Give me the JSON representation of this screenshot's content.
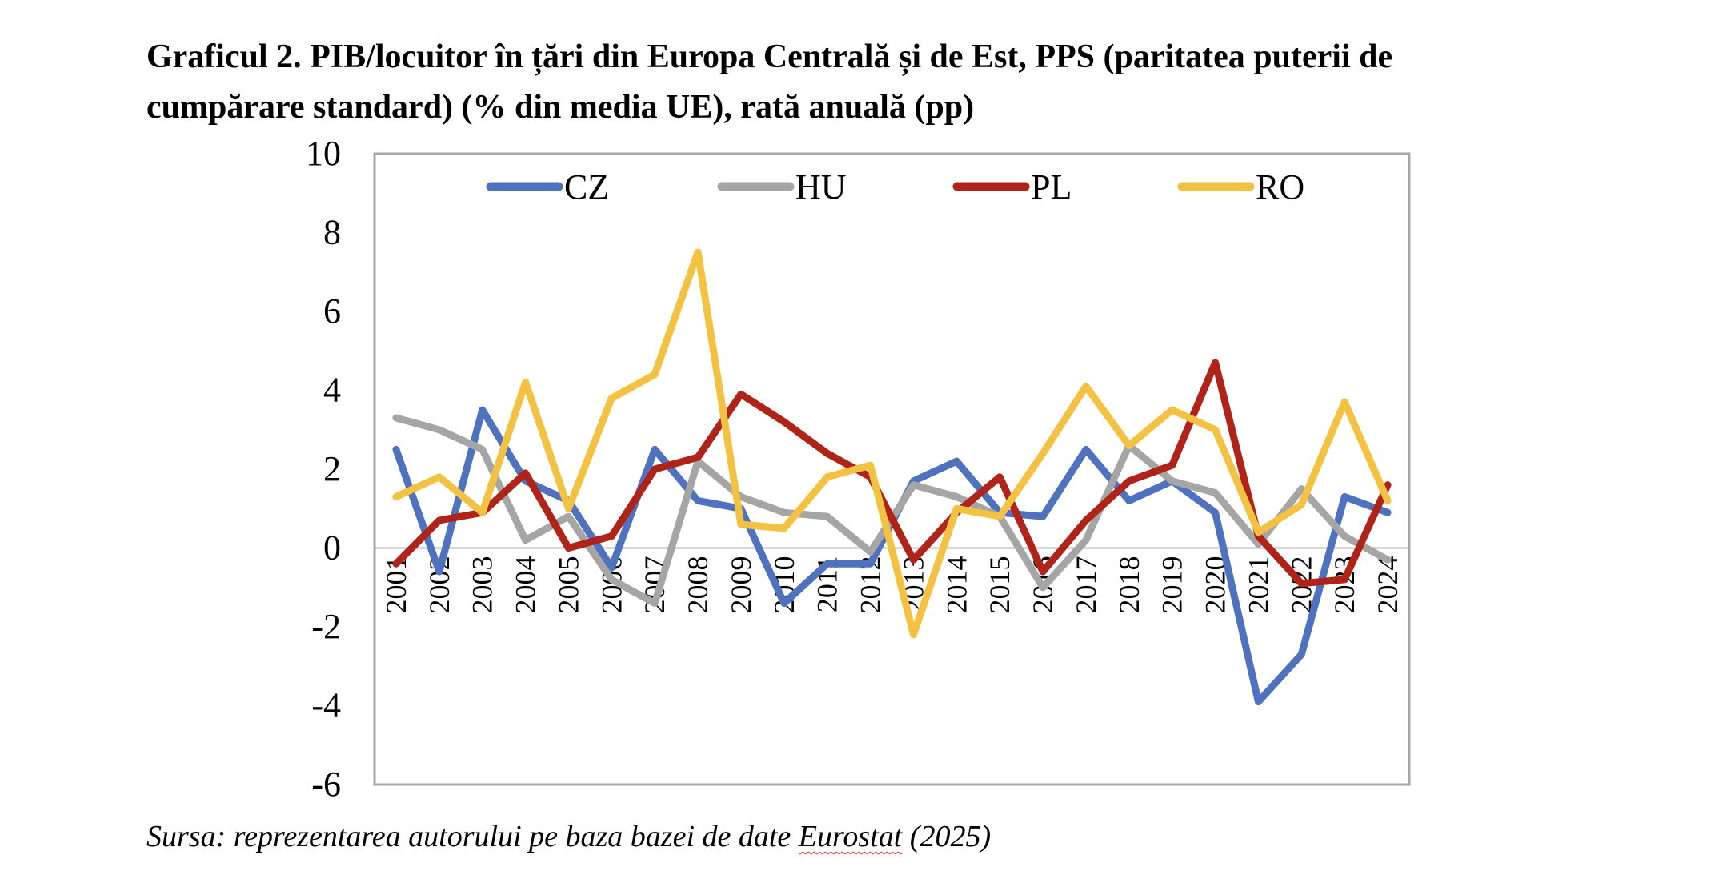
{
  "title": {
    "line1": "Graficul 2. PIB/locuitor în țări din Europa Centrală și de Est, PPS (paritatea puterii de",
    "line2": "cumpărare standard) (% din media UE), rată anuală (pp)"
  },
  "source": {
    "prefix": "Sursa: reprezentarea autorului pe baza bazei de date ",
    "highlighted": "Eurostat",
    "suffix": " (2025)"
  },
  "chart_data": {
    "type": "line",
    "title": "Graficul 2. PIB/locuitor în țări din Europa Centrală și de Est, PPS (paritatea puterii de cumpărare standard) (% din media UE), rată anuală (pp)",
    "xlabel": "",
    "ylabel": "",
    "ylim": [
      -6,
      10
    ],
    "yticks": [
      10,
      8,
      6,
      4,
      2,
      0,
      -2,
      -4,
      -6
    ],
    "grid": false,
    "zero_line": true,
    "legend_position": "top",
    "categories": [
      "2001",
      "2002",
      "2003",
      "2004",
      "2005",
      "2006",
      "2007",
      "2008",
      "2009",
      "2010",
      "2011",
      "2012",
      "2013",
      "2014",
      "2015",
      "2016",
      "2017",
      "2018",
      "2019",
      "2020",
      "2021",
      "2022",
      "2023",
      "2024"
    ],
    "series": [
      {
        "name": "CZ",
        "color": "#4f72bf",
        "values": [
          2.5,
          -0.6,
          3.5,
          1.7,
          1.2,
          -0.5,
          2.5,
          1.2,
          1.0,
          -1.4,
          -0.4,
          -0.4,
          1.7,
          2.2,
          0.9,
          0.8,
          2.5,
          1.2,
          1.7,
          0.9,
          -3.9,
          -2.7,
          1.3,
          0.9
        ]
      },
      {
        "name": "HU",
        "color": "#a5a5a5",
        "values": [
          3.3,
          3.0,
          2.5,
          0.2,
          0.8,
          -0.8,
          -1.4,
          2.2,
          1.3,
          0.9,
          0.8,
          -0.1,
          1.6,
          1.3,
          0.8,
          -1.0,
          0.2,
          2.6,
          1.7,
          1.4,
          0.1,
          1.5,
          0.3,
          -0.3
        ]
      },
      {
        "name": "PL",
        "color": "#b02318",
        "values": [
          -0.4,
          0.7,
          0.9,
          1.9,
          0.0,
          0.3,
          2.0,
          2.3,
          3.9,
          3.2,
          2.4,
          1.8,
          -0.3,
          0.9,
          1.8,
          -0.6,
          0.7,
          1.7,
          2.1,
          4.7,
          0.3,
          -0.9,
          -0.8,
          1.6
        ]
      },
      {
        "name": "RO",
        "color": "#f4c242",
        "values": [
          1.3,
          1.8,
          0.9,
          4.2,
          1.0,
          3.8,
          4.4,
          7.5,
          0.6,
          0.5,
          1.8,
          2.1,
          -2.2,
          1.0,
          0.8,
          2.4,
          4.1,
          2.6,
          3.5,
          3.0,
          0.4,
          1.1,
          3.7,
          1.2
        ]
      }
    ]
  }
}
